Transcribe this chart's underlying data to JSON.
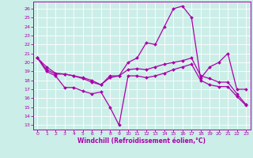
{
  "xlabel": "Windchill (Refroidissement éolien,°C)",
  "bg_color": "#cceee8",
  "line_color": "#aa00aa",
  "xlim": [
    -0.5,
    23.5
  ],
  "ylim": [
    12.5,
    26.8
  ],
  "yticks": [
    13,
    14,
    15,
    16,
    17,
    18,
    19,
    20,
    21,
    22,
    23,
    24,
    25,
    26
  ],
  "xticks": [
    0,
    1,
    2,
    3,
    4,
    5,
    6,
    7,
    8,
    9,
    10,
    11,
    12,
    13,
    14,
    15,
    16,
    17,
    18,
    19,
    20,
    21,
    22,
    23
  ],
  "series": [
    {
      "x": [
        0,
        1,
        2,
        3,
        4,
        5,
        6,
        7,
        8,
        9,
        10,
        11,
        12,
        13,
        14,
        15,
        16,
        17,
        18,
        19,
        20,
        21,
        22,
        23
      ],
      "y": [
        20.5,
        19.5,
        18.8,
        18.7,
        18.5,
        18.2,
        17.8,
        17.5,
        18.5,
        18.5,
        20.0,
        20.5,
        22.2,
        22.0,
        24.0,
        26.0,
        26.3,
        25.0,
        18.2,
        19.5,
        20.0,
        21.0,
        17.0,
        17.0
      ]
    },
    {
      "x": [
        0,
        1,
        2,
        3,
        4,
        5,
        6,
        7,
        8,
        9,
        10,
        11,
        12,
        13,
        14,
        15,
        16,
        17,
        18,
        19,
        20,
        21,
        22,
        23
      ],
      "y": [
        20.5,
        19.2,
        18.7,
        18.7,
        18.5,
        18.3,
        18.0,
        17.5,
        18.3,
        18.5,
        19.2,
        19.3,
        19.2,
        19.5,
        19.8,
        20.0,
        20.2,
        20.5,
        18.5,
        18.2,
        17.8,
        17.8,
        16.5,
        15.3
      ]
    },
    {
      "x": [
        0,
        1,
        2,
        3,
        4,
        5,
        6,
        7,
        8,
        9,
        10,
        11,
        12,
        13,
        14,
        15,
        16,
        17,
        18,
        19,
        20,
        21,
        22,
        23
      ],
      "y": [
        20.5,
        19.0,
        18.5,
        17.2,
        17.2,
        16.8,
        16.5,
        16.7,
        15.0,
        13.0,
        18.5,
        18.5,
        18.3,
        18.5,
        18.8,
        19.2,
        19.5,
        19.8,
        18.0,
        17.5,
        17.3,
        17.3,
        16.2,
        15.2
      ]
    }
  ]
}
